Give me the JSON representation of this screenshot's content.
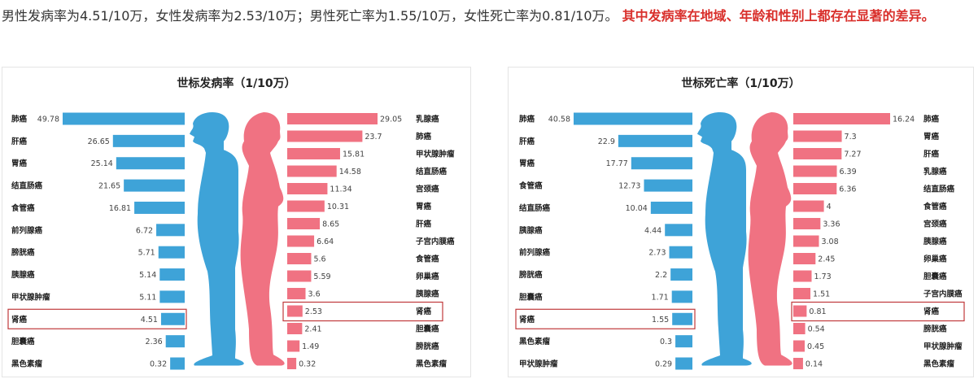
{
  "intro": {
    "text": "男性发病率为4.51/10万，女性发病率为2.53/10万；男性死亡率为1.55/10万，女性死亡率为0.81/10万。",
    "highlight": "其中发病率在地域、年龄和性别上都存在显著的差异。"
  },
  "colors": {
    "male": "#3ea3d8",
    "female": "#f07282",
    "highlight_box": "#c0393b",
    "highlight_text": "#d9302c"
  },
  "chart_data": [
    {
      "type": "bar",
      "title": "世标发病率（1/10万）",
      "highlight": "肾癌",
      "male": {
        "categories": [
          "肺癌",
          "肝癌",
          "胃癌",
          "结直肠癌",
          "食管癌",
          "前列腺癌",
          "膀胱癌",
          "胰腺癌",
          "甲状腺肿瘤",
          "肾癌",
          "胆囊癌",
          "黑色素瘤"
        ],
        "values": [
          49.78,
          26.65,
          25.14,
          21.65,
          16.81,
          6.72,
          5.71,
          5.14,
          5.11,
          4.51,
          2.36,
          0.32
        ]
      },
      "female": {
        "categories": [
          "乳腺癌",
          "肺癌",
          "甲状腺肿瘤",
          "结直肠癌",
          "宫颈癌",
          "胃癌",
          "肝癌",
          "子宫内膜癌",
          "食管癌",
          "卵巢癌",
          "胰腺癌",
          "肾癌",
          "胆囊癌",
          "膀胱癌",
          "黑色素瘤"
        ],
        "values": [
          29.05,
          23.7,
          15.81,
          14.58,
          11.34,
          10.31,
          8.65,
          6.64,
          5.6,
          5.59,
          3.6,
          2.53,
          2.41,
          1.49,
          0.32
        ]
      }
    },
    {
      "type": "bar",
      "title": "世标死亡率（1/10万）",
      "highlight": "肾癌",
      "male": {
        "categories": [
          "肺癌",
          "肝癌",
          "胃癌",
          "食管癌",
          "结直肠癌",
          "胰腺癌",
          "前列腺癌",
          "膀胱癌",
          "胆囊癌",
          "肾癌",
          "黑色素瘤",
          "甲状腺肿瘤"
        ],
        "values": [
          40.58,
          22.9,
          17.77,
          12.73,
          10.04,
          4.44,
          2.73,
          2.2,
          1.71,
          1.55,
          0.3,
          0.29
        ]
      },
      "female": {
        "categories": [
          "肺癌",
          "胃癌",
          "肝癌",
          "乳腺癌",
          "结直肠癌",
          "食管癌",
          "宫颈癌",
          "胰腺癌",
          "卵巢癌",
          "胆囊癌",
          "子宫内膜癌",
          "肾癌",
          "膀胱癌",
          "甲状腺肿瘤",
          "黑色素瘤"
        ],
        "values": [
          16.24,
          7.3,
          7.27,
          6.39,
          6.36,
          4,
          3.36,
          3.08,
          2.45,
          1.73,
          1.51,
          0.81,
          0.54,
          0.45,
          0.14
        ]
      }
    }
  ]
}
